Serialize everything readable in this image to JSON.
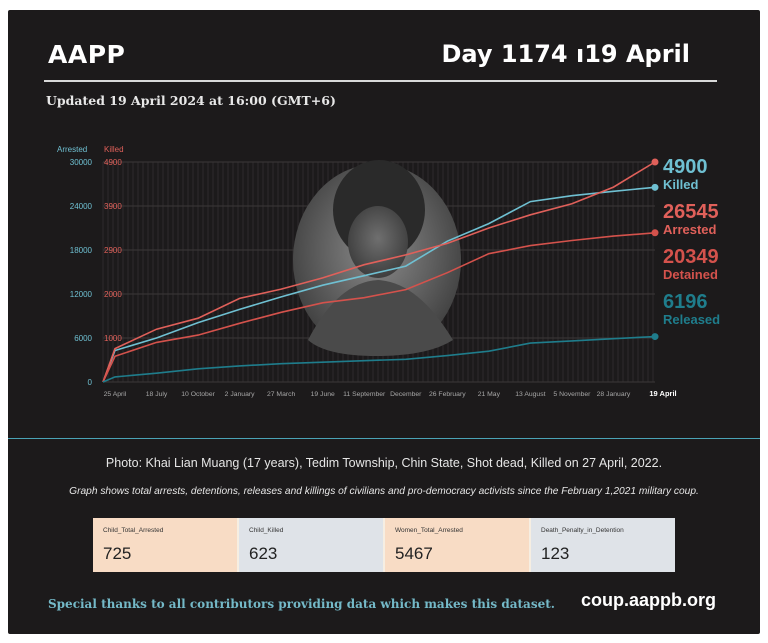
{
  "header": {
    "brand": "AAPP",
    "day": "Day 1174 ı19 April",
    "updated": "Updated 19 April 2024 at 16:00 (GMT+6)"
  },
  "colors": {
    "background": "#1c1a1b",
    "arrested": "#6fc0d2",
    "killed": "#e0605a",
    "detained": "#d4524c",
    "released": "#1f7d8c",
    "thanks_text": "#74b9c8"
  },
  "chart_data": {
    "type": "line",
    "photo_subject": "portrait-photo",
    "x": [
      "25 April",
      "18 July",
      "10 October",
      "2 January",
      "27 March",
      "19 June",
      "11 September",
      "December",
      "26 February",
      "21 May",
      "13 August",
      "5 November",
      "28 January",
      "19 April"
    ],
    "left_axis_title": "Arrested",
    "right_axis_title": "Killed",
    "left_ticks": [
      "0",
      "6000",
      "12000",
      "18000",
      "24000",
      "30000"
    ],
    "right_ticks": [
      "1000",
      "2000",
      "2900",
      "3900",
      "4900"
    ],
    "left_range": [
      0,
      30000
    ],
    "grid": true,
    "series": [
      {
        "name": "Arrested",
        "axis": "left",
        "color": "#6fc0d2",
        "values": [
          4300,
          6000,
          8100,
          9900,
          11600,
          13200,
          14500,
          15800,
          19200,
          21600,
          24600,
          25400,
          26000,
          26545
        ]
      },
      {
        "name": "Killed",
        "axis": "right",
        "color": "#e0605a",
        "values": [
          760,
          1200,
          1450,
          1900,
          2100,
          2330,
          2600,
          2800,
          3050,
          3400,
          3700,
          3950,
          4330,
          4900
        ]
      },
      {
        "name": "Detained",
        "axis": "left",
        "color": "#d4524c",
        "values": [
          3500,
          5400,
          6400,
          8000,
          9500,
          10800,
          11500,
          12600,
          14900,
          17500,
          18600,
          19300,
          19900,
          20349
        ]
      },
      {
        "name": "Released",
        "axis": "left",
        "color": "#1f7d8c",
        "values": [
          700,
          1200,
          1800,
          2200,
          2500,
          2700,
          2900,
          3100,
          3600,
          4200,
          5300,
          5600,
          5900,
          6196
        ]
      }
    ],
    "end_labels": [
      {
        "value": "4900",
        "label": "Killed"
      },
      {
        "value": "26545",
        "label": "Arrested"
      },
      {
        "value": "20349",
        "label": "Detained"
      },
      {
        "value": "6196",
        "label": "Released"
      }
    ]
  },
  "caption": "Photo: Khai Lian Muang (17 years), Tedim Township, Chin State, Shot dead, Killed on 27 April, 2022.",
  "subcaption": "Graph shows total arrests, detentions, releases and killings of civilians and pro-democracy activists since the February 1,2021 military coup.",
  "stats": [
    {
      "label": "Child_Total_Arrested",
      "value": "725",
      "bg": "#f8dcc5"
    },
    {
      "label": "Child_Killed",
      "value": "623",
      "bg": "#dfe3e8"
    },
    {
      "label": "Women_Total_Arrested",
      "value": "5467",
      "bg": "#f8dcc5"
    },
    {
      "label": "Death_Penalty_in_Detention",
      "value": "123",
      "bg": "#dfe3e8"
    }
  ],
  "footer": {
    "thanks": "Special thanks to all contributors providing data which makes this dataset.",
    "site": "coup.aappb.org"
  }
}
